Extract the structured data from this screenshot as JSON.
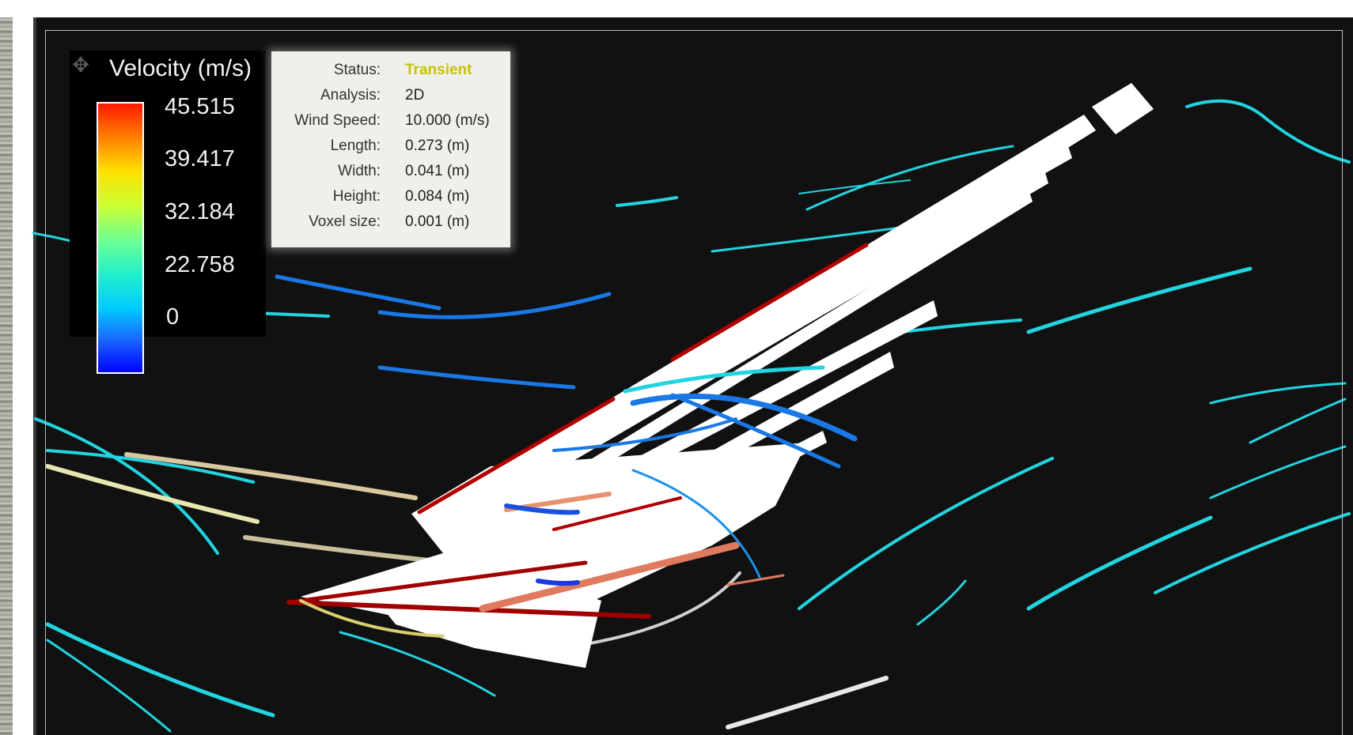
{
  "legend": {
    "title": "Velocity (m/s)",
    "icon": "move-icon",
    "ticks": [
      "45.515",
      "39.417",
      "32.184",
      "22.758",
      "0"
    ],
    "max_value": 45.515,
    "min_value": 0
  },
  "info": {
    "rows": [
      {
        "label": "Status:",
        "value": "Transient"
      },
      {
        "label": "Analysis:",
        "value": "2D"
      },
      {
        "label": "Wind Speed:",
        "value": "10.000 (m/s)"
      },
      {
        "label": "Length:",
        "value": "0.273 (m)"
      },
      {
        "label": "Width:",
        "value": "0.041 (m)"
      },
      {
        "label": "Height:",
        "value": "0.084 (m)"
      },
      {
        "label": "Voxel size:",
        "value": "0.001 (m)"
      }
    ]
  },
  "colors": {
    "background": "#111111",
    "status_highlight": "#c7c400",
    "streamline_cyan": "#22d4e0",
    "streamline_blue": "#1a78e6",
    "high_velocity_red": "#b00000",
    "model": "#ffffff"
  }
}
